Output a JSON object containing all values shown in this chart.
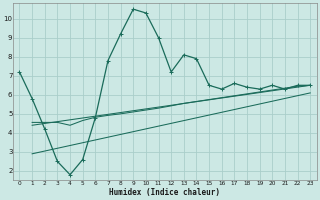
{
  "xlabel": "Humidex (Indice chaleur)",
  "bg_color": "#cce8e4",
  "grid_color": "#aaceca",
  "line_color": "#1a6b5a",
  "xlim": [
    -0.5,
    23.5
  ],
  "ylim": [
    1.5,
    10.8
  ],
  "xticks": [
    0,
    1,
    2,
    3,
    4,
    5,
    6,
    7,
    8,
    9,
    10,
    11,
    12,
    13,
    14,
    15,
    16,
    17,
    18,
    19,
    20,
    21,
    22,
    23
  ],
  "yticks": [
    2,
    3,
    4,
    5,
    6,
    7,
    8,
    9,
    10
  ],
  "main_x": [
    0,
    1,
    2,
    3,
    4,
    5,
    6,
    7,
    8,
    9,
    10,
    11,
    12,
    13,
    14,
    15,
    16,
    17,
    18,
    19,
    20,
    21,
    22,
    23
  ],
  "main_y": [
    7.2,
    5.8,
    4.2,
    2.5,
    1.8,
    2.6,
    4.8,
    7.8,
    9.2,
    10.5,
    10.3,
    9.0,
    7.2,
    8.1,
    7.9,
    6.5,
    6.3,
    6.6,
    6.4,
    6.3,
    6.5,
    6.3,
    6.5,
    6.5
  ],
  "line2_x": [
    1,
    2,
    3,
    4,
    5,
    6,
    7,
    8,
    9,
    10,
    11,
    12,
    13,
    14,
    15,
    16,
    17,
    18,
    19,
    20,
    21,
    22,
    23
  ],
  "line2_y": [
    4.55,
    4.55,
    4.55,
    4.4,
    4.65,
    4.82,
    4.92,
    5.0,
    5.1,
    5.2,
    5.3,
    5.42,
    5.55,
    5.65,
    5.75,
    5.85,
    5.95,
    6.05,
    6.15,
    6.25,
    6.35,
    6.45,
    6.5
  ],
  "line3_x": [
    1,
    23
  ],
  "line3_y": [
    4.4,
    6.5
  ],
  "line4_x": [
    1,
    23
  ],
  "line4_y": [
    2.9,
    6.1
  ]
}
